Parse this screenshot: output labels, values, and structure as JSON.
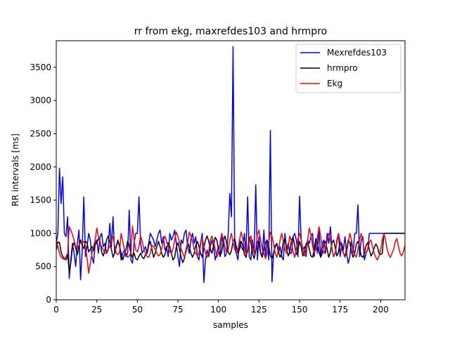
{
  "chart_data": {
    "type": "line",
    "title": "rr from ekg, maxrefdes103 and hrmpro",
    "xlabel": "samples",
    "ylabel": "RR intervals [ms]",
    "xlim": [
      0,
      215
    ],
    "ylim": [
      0,
      3900
    ],
    "xticks": [
      0,
      25,
      50,
      75,
      100,
      125,
      150,
      175,
      200
    ],
    "yticks": [
      0,
      500,
      1000,
      1500,
      2000,
      2500,
      3000,
      3500
    ],
    "legend_position": "upper-right",
    "grid": false,
    "series": [
      {
        "name": "Mexrefdes103",
        "color": "#0000ff",
        "values": [
          850,
          1000,
          1980,
          1450,
          1850,
          1000,
          950,
          1250,
          320,
          600,
          850,
          700,
          500,
          850,
          1050,
          300,
          750,
          1550,
          650,
          800,
          1000,
          900,
          650,
          550,
          850,
          900,
          700,
          950,
          1000,
          800,
          850,
          700,
          750,
          1150,
          800,
          1250,
          700,
          800,
          900,
          800,
          600,
          700,
          750,
          650,
          700,
          1350,
          600,
          550,
          850,
          1000,
          1000,
          1550,
          850,
          700,
          750,
          800,
          700,
          850,
          1000,
          950,
          900,
          800,
          900,
          1000,
          1050,
          850,
          950,
          750,
          800,
          650,
          1000,
          900,
          950,
          1050,
          850,
          650,
          500,
          900,
          850,
          1000,
          1050,
          800,
          700,
          900,
          1000,
          850,
          950,
          650,
          600,
          850,
          1000,
          260,
          600,
          750,
          650,
          800,
          900,
          800,
          600,
          700,
          800,
          650,
          950,
          850,
          650,
          700,
          1000,
          1600,
          1250,
          3810,
          850,
          700,
          600,
          900,
          800,
          750,
          1000,
          700,
          1550,
          650,
          600,
          900,
          700,
          1730,
          600,
          950,
          700,
          650,
          1050,
          650,
          900,
          600,
          2550,
          270,
          700,
          800,
          850,
          700,
          800,
          650,
          600,
          1000,
          750,
          850,
          700,
          700,
          950,
          1000,
          900,
          650,
          1560,
          900,
          750,
          800,
          650,
          900,
          850,
          950,
          1000,
          650,
          900,
          700,
          1050,
          650,
          850,
          900,
          700,
          1000,
          850,
          1100,
          750,
          650,
          700,
          900,
          1000,
          650,
          850,
          750,
          950,
          700,
          550,
          650,
          900,
          700,
          1000,
          1000,
          1430,
          650,
          900,
          950,
          600,
          700,
          750,
          1000,
          1000,
          1000,
          1000,
          1000,
          1000,
          1000,
          1000,
          1000,
          1000,
          1000,
          1000,
          1000,
          1000,
          1000,
          1000,
          1000,
          1000,
          1000,
          1000,
          1000,
          1000,
          1000
        ]
      },
      {
        "name": "hrmpro",
        "color": "#000000",
        "values": [
          750,
          870,
          860,
          720,
          650,
          620,
          600,
          680,
          430,
          560,
          800,
          860,
          780,
          680,
          800,
          900,
          820,
          770,
          880,
          860,
          720,
          760,
          800,
          740,
          830,
          860,
          920,
          880,
          720,
          660,
          750,
          900,
          960,
          880,
          760,
          640,
          700,
          800,
          880,
          820,
          700,
          600,
          680,
          760,
          880,
          820,
          700,
          640,
          700,
          620,
          600,
          660,
          700,
          640,
          620,
          680,
          700,
          820,
          880,
          760,
          640,
          700,
          800,
          880,
          800,
          700,
          640,
          680,
          780,
          860,
          800,
          700,
          600,
          640,
          800,
          860,
          760,
          640,
          560,
          620,
          760,
          860,
          800,
          700,
          640,
          700,
          820,
          880,
          800,
          700,
          640,
          780,
          900,
          960,
          880,
          760,
          700,
          820,
          940,
          900,
          760,
          660,
          720,
          880,
          960,
          860,
          720,
          680,
          740,
          880,
          920,
          800,
          700,
          760,
          880,
          820,
          680,
          640,
          760,
          940,
          860,
          700,
          620,
          740,
          880,
          840,
          700,
          640,
          760,
          860,
          900,
          800,
          660,
          620,
          700,
          820,
          840,
          720,
          640,
          700,
          880,
          920,
          780,
          660,
          720,
          900,
          940,
          820,
          680,
          740,
          880,
          800,
          660,
          720,
          840,
          880,
          760,
          660,
          640,
          760,
          920,
          880,
          720,
          640,
          700,
          860,
          880,
          760,
          640,
          720,
          860,
          900,
          780,
          660,
          720,
          880,
          840,
          700,
          660,
          760,
          900,
          860,
          720,
          640,
          700,
          840,
          880,
          780,
          660,
          640,
          700,
          820,
          860,
          760,
          660,
          700,
          780,
          840,
          800,
          700,
          680,
          700,
          1000,
          1000,
          1000,
          1000,
          1000,
          1000,
          1000,
          1000,
          1000,
          1000,
          1000,
          1000,
          1000,
          1000,
          1000,
          1000,
          1000
        ]
      },
      {
        "name": "Ekg",
        "color": "#ff0000",
        "values": [
          880,
          800,
          700,
          640,
          620,
          610,
          650,
          700,
          1100,
          1050,
          980,
          900,
          800,
          780,
          820,
          860,
          860,
          880,
          820,
          620,
          400,
          550,
          700,
          800,
          900,
          1080,
          950,
          850,
          800,
          750,
          700,
          720,
          760,
          800,
          900,
          950,
          820,
          700,
          680,
          720,
          1000,
          880,
          760,
          700,
          640,
          660,
          700,
          1110,
          900,
          750,
          720,
          800,
          960,
          880,
          760,
          700,
          650,
          640,
          700,
          820,
          800,
          760,
          700,
          660,
          680,
          760,
          900,
          960,
          880,
          800,
          720,
          700,
          760,
          900,
          1020,
          960,
          860,
          760,
          700,
          640,
          720,
          860,
          1020,
          960,
          880,
          760,
          700,
          660,
          700,
          880,
          920,
          820,
          700,
          640,
          720,
          900,
          960,
          880,
          760,
          640,
          700,
          860,
          1000,
          920,
          800,
          700,
          760,
          900,
          1000,
          860,
          760,
          700,
          760,
          900,
          1020,
          920,
          780,
          680,
          720,
          880,
          960,
          800,
          700,
          760,
          980,
          1050,
          900,
          760,
          700,
          620,
          700,
          860,
          1020,
          960,
          840,
          700,
          640,
          760,
          900,
          1000,
          880,
          760,
          700,
          800,
          960,
          880,
          720,
          640,
          760,
          920,
          1000,
          900,
          760,
          660,
          720,
          900,
          1080,
          980,
          820,
          700,
          760,
          940,
          1100,
          960,
          800,
          700,
          760,
          900,
          1000,
          900,
          760,
          660,
          700,
          860,
          1000,
          880,
          760,
          700,
          640,
          700,
          860,
          1000,
          900,
          760,
          680,
          640,
          760,
          900,
          1000,
          880,
          740,
          700,
          760,
          860,
          900,
          800,
          700,
          640,
          600,
          660,
          760,
          900,
          1000,
          900,
          760,
          680,
          640,
          700,
          760,
          880,
          920,
          800,
          700,
          660,
          720,
          820,
          860,
          820
        ]
      }
    ]
  }
}
